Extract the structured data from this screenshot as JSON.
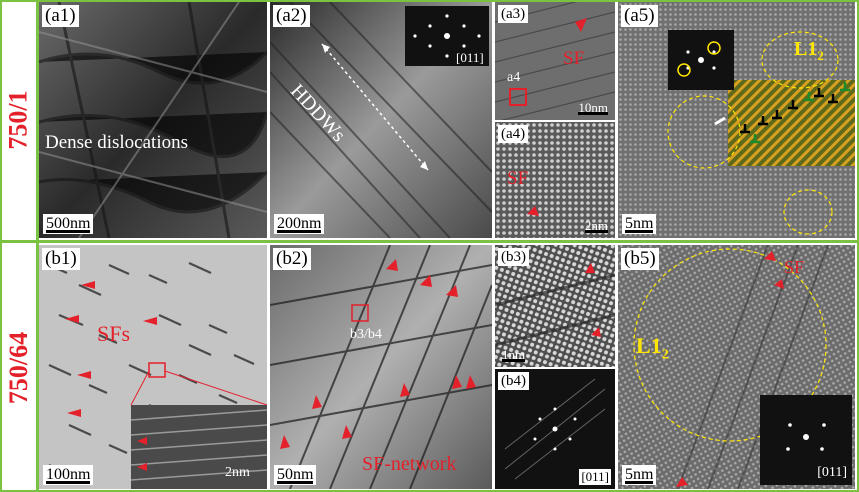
{
  "rows": [
    {
      "label": "750/1"
    },
    {
      "label": "750/64"
    }
  ],
  "panels": {
    "a1": {
      "tag": "(a1)",
      "scale": "500nm",
      "caption": "Dense dislocations"
    },
    "a2": {
      "tag": "(a2)",
      "scale": "200nm",
      "annotation": "HDDWs",
      "zone_axis": "[011]"
    },
    "a3": {
      "tag": "(a3)",
      "scale": "10nm",
      "annotation": "SF",
      "box_label": "a4"
    },
    "a4": {
      "tag": "(a4)",
      "scale": "2nm",
      "annotation": "SF"
    },
    "a5": {
      "tag": "(a5)",
      "scale": "5nm",
      "annotation": "L1",
      "annotation_sub": "2"
    },
    "b1": {
      "tag": "(b1)",
      "scale": "100nm",
      "annotation": "SFs",
      "inset_scale": "2nm"
    },
    "b2": {
      "tag": "(b2)",
      "scale": "50nm",
      "annotation": "SF-network",
      "box_label": "b3/b4"
    },
    "b3": {
      "tag": "(b3)",
      "scale": "1nm"
    },
    "b4": {
      "tag": "(b4)",
      "zone_axis": "[011]"
    },
    "b5": {
      "tag": "(b5)",
      "scale": "5nm",
      "annotation": "SF",
      "label": "L1",
      "label_sub": "2",
      "zone_axis": "[011]"
    }
  },
  "colors": {
    "border": "#7cc242",
    "red": "#e4202a",
    "yellow": "#ffe600"
  }
}
